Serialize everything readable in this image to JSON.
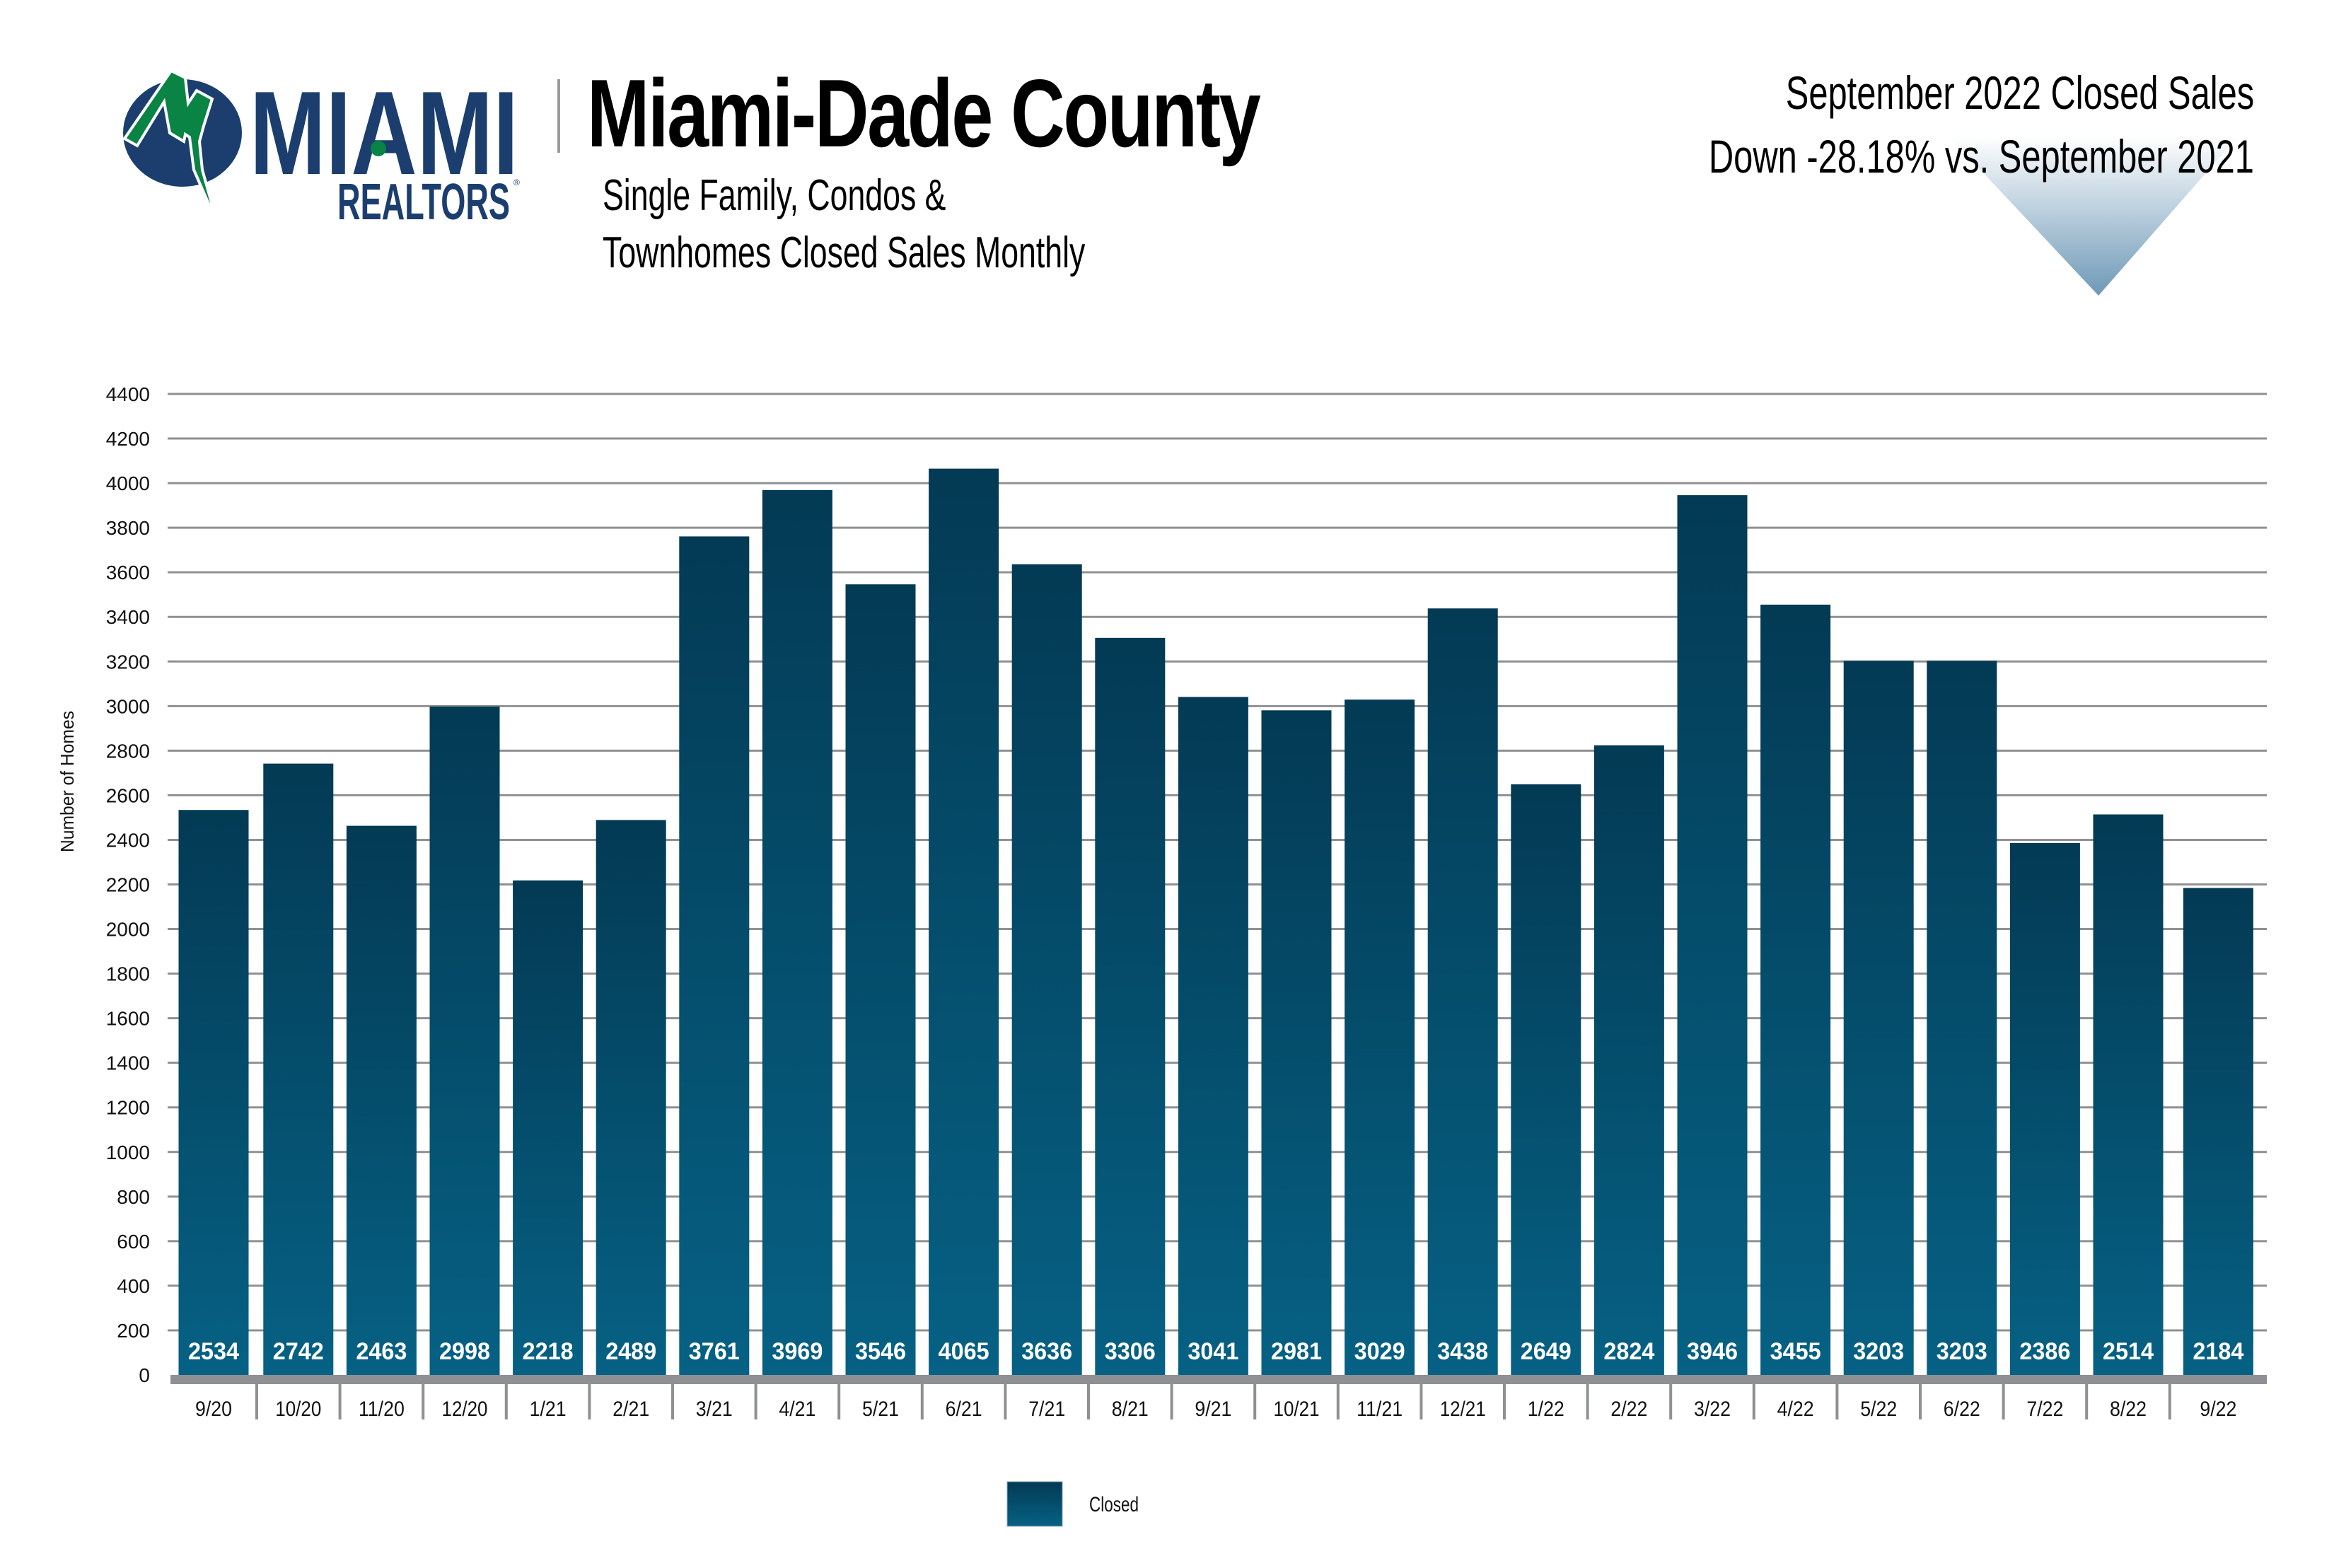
{
  "header": {
    "logo": {
      "brand_top": "MIAMI",
      "brand_bottom": "REALTORS",
      "registered_mark": "®",
      "colors": {
        "navy": "#1b3e6f",
        "green": "#0a8444"
      }
    },
    "title": "Miami-Dade County",
    "subtitle_lines": [
      "Single Family, Condos &",
      "Townhomes Closed Sales Monthly"
    ],
    "summary_lines": [
      "September 2022 Closed Sales",
      "Down -28.18% vs. September 2021"
    ],
    "trend_indicator": "down-arrow-icon"
  },
  "chart_data": {
    "type": "bar",
    "title": "Miami-Dade County Single Family, Condos & Townhomes Closed Sales Monthly",
    "xlabel": "",
    "ylabel": "Number of Homes",
    "ylim": [
      0,
      4400
    ],
    "yticks": [
      0,
      200,
      400,
      600,
      800,
      1000,
      1200,
      1400,
      1600,
      1800,
      2000,
      2200,
      2400,
      2600,
      2800,
      3000,
      3200,
      3400,
      3600,
      3800,
      4000,
      4200,
      4400
    ],
    "grid": true,
    "legend_position": "bottom-center",
    "categories": [
      "9/20",
      "10/20",
      "11/20",
      "12/20",
      "1/21",
      "2/21",
      "3/21",
      "4/21",
      "5/21",
      "6/21",
      "7/21",
      "8/21",
      "9/21",
      "10/21",
      "11/21",
      "12/21",
      "1/22",
      "2/22",
      "3/22",
      "4/22",
      "5/22",
      "6/22",
      "7/22",
      "8/22",
      "9/22"
    ],
    "series": [
      {
        "name": "Closed",
        "color_top": "#033a54",
        "color_bottom": "#066184",
        "values": [
          2534,
          2742,
          2463,
          2998,
          2218,
          2489,
          3761,
          3969,
          3546,
          4065,
          3636,
          3306,
          3041,
          2981,
          3029,
          3438,
          2649,
          2824,
          3946,
          3455,
          3203,
          3203,
          2386,
          2514,
          2184
        ]
      }
    ]
  }
}
